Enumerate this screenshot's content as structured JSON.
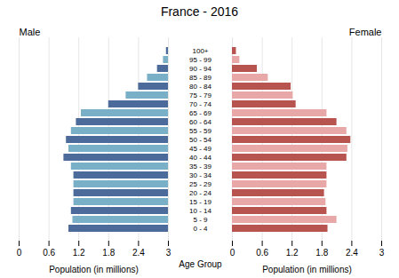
{
  "chart_data": {
    "type": "bar",
    "orientation": "horizontal",
    "title": "France - 2016",
    "ylabel": "Age Group",
    "grid": true,
    "categories": [
      "0 - 4",
      "5 - 9",
      "10 - 14",
      "15 - 19",
      "20 - 24",
      "25 - 29",
      "30 - 34",
      "35 - 39",
      "40 - 44",
      "45 - 49",
      "50 - 54",
      "55 - 59",
      "60 - 64",
      "65 - 69",
      "70 - 74",
      "75 - 79",
      "80 - 84",
      "85 - 89",
      "90 - 94",
      "95 - 99",
      "100+"
    ],
    "series": [
      {
        "name": "Male",
        "xlabel": "Population (in millions)",
        "xlim": [
          3.0,
          0
        ],
        "xticks": [
          {
            "value": 0,
            "label": "3"
          },
          {
            "value": 0.6,
            "label": "2.4"
          },
          {
            "value": 1.2,
            "label": "1.8"
          },
          {
            "value": 1.8,
            "label": "1.2"
          },
          {
            "value": 2.4,
            "label": "0.6"
          },
          {
            "value": 3.0,
            "label": "0"
          }
        ],
        "values": [
          2.0,
          1.92,
          1.95,
          1.9,
          1.9,
          1.9,
          1.9,
          1.95,
          2.1,
          2.0,
          2.05,
          1.95,
          1.85,
          1.75,
          1.2,
          0.85,
          0.6,
          0.42,
          0.22,
          0.1,
          0.04
        ],
        "colors": [
          "#4c6b9a",
          "#7aafc8",
          "#4c6b9a",
          "#7aafc8",
          "#4c6b9a",
          "#7aafc8",
          "#4c6b9a",
          "#7aafc8",
          "#4c6b9a",
          "#7aafc8",
          "#4c6b9a",
          "#7aafc8",
          "#4c6b9a",
          "#7aafc8",
          "#4c6b9a",
          "#7aafc8",
          "#4c6b9a",
          "#7aafc8",
          "#4c6b9a",
          "#7aafc8",
          "#4c6b9a"
        ]
      },
      {
        "name": "Female",
        "xlabel": "Population (in millions)",
        "xlim": [
          0,
          3.0
        ],
        "xticks": [
          0,
          0.6,
          1.2,
          1.8,
          2.4,
          3
        ],
        "values": [
          1.92,
          2.1,
          1.9,
          1.88,
          1.85,
          1.9,
          1.9,
          1.9,
          2.3,
          2.32,
          2.38,
          2.3,
          2.1,
          1.9,
          1.28,
          1.22,
          1.18,
          0.72,
          0.5,
          0.15,
          0.08
        ],
        "colors": [
          "#b85450",
          "#e8a8a8",
          "#b85450",
          "#e8a8a8",
          "#b85450",
          "#e8a8a8",
          "#b85450",
          "#e8a8a8",
          "#b85450",
          "#e8a8a8",
          "#b85450",
          "#e8a8a8",
          "#b85450",
          "#e8a8a8",
          "#b85450",
          "#e8a8a8",
          "#b85450",
          "#e8a8a8",
          "#b85450",
          "#e8a8a8",
          "#b85450"
        ]
      }
    ]
  }
}
